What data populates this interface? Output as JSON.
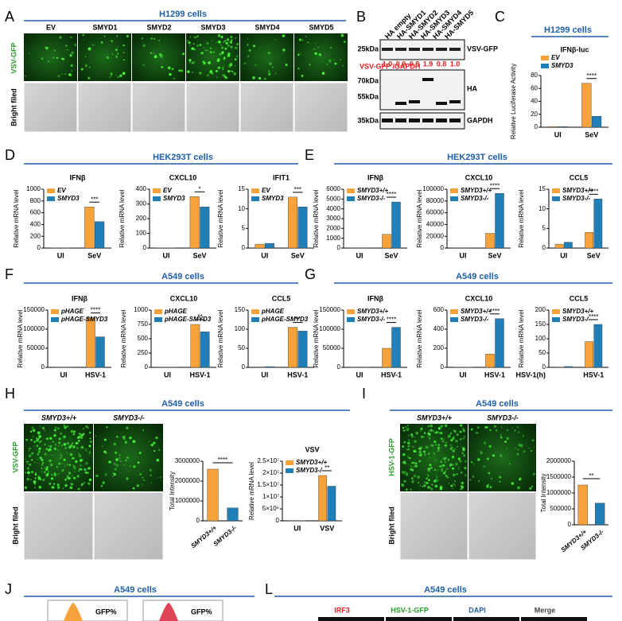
{
  "panels": [
    {
      "letter": "A",
      "header": "H1299 cells"
    },
    {
      "letter": "B"
    },
    {
      "letter": "C",
      "header": "H1299 cells"
    },
    {
      "letter": "D",
      "header": "HEK293T cells"
    },
    {
      "letter": "E",
      "header": "HEK293T cells"
    },
    {
      "letter": "F",
      "header": "A549 cells"
    },
    {
      "letter": "G",
      "header": "A549 cells"
    },
    {
      "letter": "H",
      "header": "A549 cells"
    },
    {
      "letter": "I",
      "header": "A549 cells"
    },
    {
      "letter": "J",
      "header": "A549 cells"
    },
    {
      "letter": "L",
      "header": "A549 cells"
    }
  ],
  "panel_a": {
    "columns": [
      "EV",
      "SMYD1",
      "SMYD2",
      "SMYD3",
      "SMYD4",
      "SMYD5"
    ],
    "rows": [
      "VSV-GFP",
      "Bright filed"
    ]
  },
  "panel_b": {
    "lanes": [
      "HA empty",
      "HA-SMYD1",
      "HA-SMYD2",
      "HA-SMYD3",
      "HA-SMYD4",
      "HA-SMYD5"
    ],
    "markers": [
      "25kDa",
      "70kDa",
      "55kDa",
      "35kDa"
    ],
    "bands": [
      "VSV-GFP",
      "HA",
      "GAPDH"
    ],
    "ratio_label": "VSV-GFP /GAPDH",
    "ratios": [
      "1.0",
      "0.9",
      "0.8",
      "1.9",
      "0.8",
      "1.0"
    ]
  },
  "panel_h": {
    "columns": [
      "SMYD3+/+",
      "SMYD3-/-"
    ],
    "rows": [
      "VSV-GFP",
      "Bright filed"
    ]
  },
  "panel_i": {
    "columns": [
      "SMYD3+/+",
      "SMYD3-/-"
    ],
    "rows": [
      "HSV-1-GFP",
      "Bright filed"
    ]
  },
  "panel_j": {
    "labels": [
      "GFP%",
      "GFP%"
    ]
  },
  "panel_l": {
    "columns": [
      "IRF3",
      "HSV-1-GFP",
      "DAPI",
      "Merge"
    ]
  },
  "chart_data": [
    {
      "type": "bar",
      "title": "IFNβ-luc",
      "ylabel": "Relative Luciferase Activity",
      "categories": [
        "UI",
        "SeV"
      ],
      "series": [
        {
          "name": "EV",
          "color": "#f5a23a",
          "values": [
            1,
            68
          ]
        },
        {
          "name": "SMYD3",
          "color": "#1f7fb6",
          "values": [
            1,
            17
          ]
        }
      ],
      "ylim": [
        0,
        80
      ],
      "yticks": [
        0,
        20,
        40,
        60,
        80
      ],
      "annotation": "****"
    },
    {
      "type": "bar",
      "title": "IFNβ",
      "ylabel": "Relative mRNA level",
      "categories": [
        "UI",
        "SeV"
      ],
      "series": [
        {
          "name": "EV",
          "color": "#f5a23a",
          "values": [
            1,
            700
          ]
        },
        {
          "name": "SMYD3",
          "color": "#1f7fb6",
          "values": [
            1,
            450
          ]
        }
      ],
      "ylim": [
        0,
        1000
      ],
      "yticks": [
        0,
        200,
        400,
        600,
        800,
        1000
      ],
      "annotation": "***"
    },
    {
      "type": "bar",
      "title": "CXCL10",
      "ylabel": "Relative mRNA level",
      "categories": [
        "UI",
        "SeV"
      ],
      "series": [
        {
          "name": "EV",
          "color": "#f5a23a",
          "values": [
            1,
            350
          ]
        },
        {
          "name": "SMYD3",
          "color": "#1f7fb6",
          "values": [
            1,
            280
          ]
        }
      ],
      "ylim": [
        0,
        400
      ],
      "yticks": [
        0,
        100,
        200,
        300,
        400
      ],
      "annotation": "*"
    },
    {
      "type": "bar",
      "title": "IFIT1",
      "ylabel": "Relative mRNA level",
      "categories": [
        "UI",
        "SeV"
      ],
      "series": [
        {
          "name": "EV",
          "color": "#f5a23a",
          "values": [
            1,
            13
          ]
        },
        {
          "name": "SMYD3",
          "color": "#1f7fb6",
          "values": [
            1.2,
            10.5
          ]
        }
      ],
      "ylim": [
        0,
        15
      ],
      "yticks": [
        0,
        5,
        10,
        15
      ],
      "annotation": "***"
    },
    {
      "type": "bar",
      "title": "IFNβ",
      "ylabel": "Relative mRNA level",
      "categories": [
        "UI",
        "SeV"
      ],
      "series": [
        {
          "name": "SMYD3+/+",
          "color": "#f5a23a",
          "values": [
            1,
            1400
          ]
        },
        {
          "name": "SMYD3-/-",
          "color": "#1f7fb6",
          "values": [
            1,
            4700
          ]
        }
      ],
      "ylim": [
        0,
        6000
      ],
      "yticks": [
        0,
        1000,
        2000,
        3000,
        4000,
        5000,
        6000
      ],
      "annotation": "****"
    },
    {
      "type": "bar",
      "title": "CXCL10",
      "ylabel": "Relative mRNA level",
      "categories": [
        "UI",
        "SeV"
      ],
      "series": [
        {
          "name": "SMYD3+/+",
          "color": "#f5a23a",
          "values": [
            1,
            25000
          ]
        },
        {
          "name": "SMYD3-/-",
          "color": "#1f7fb6",
          "values": [
            1,
            93000
          ]
        }
      ],
      "ylim": [
        0,
        100000
      ],
      "yticks": [
        0,
        20000,
        40000,
        60000,
        80000,
        100000
      ],
      "annotation": "****"
    },
    {
      "type": "bar",
      "title": "CCL5",
      "ylabel": "Relative mRNA level",
      "categories": [
        "UI",
        "SeV"
      ],
      "series": [
        {
          "name": "SMYD3+/+",
          "color": "#f5a23a",
          "values": [
            1,
            4
          ]
        },
        {
          "name": "SMYD3-/-",
          "color": "#1f7fb6",
          "values": [
            1.5,
            12.5
          ]
        }
      ],
      "ylim": [
        0,
        15
      ],
      "yticks": [
        0,
        5,
        10,
        15
      ],
      "annotation": "****"
    },
    {
      "type": "bar",
      "title": "IFNβ",
      "ylabel": "Relative mRNA level",
      "categories": [
        "UI",
        "HSV-1"
      ],
      "series": [
        {
          "name": "pHAGE",
          "color": "#f5a23a",
          "values": [
            1,
            130000
          ]
        },
        {
          "name": "pHAGE-SMYD3",
          "color": "#1f7fb6",
          "values": [
            1,
            80000
          ]
        }
      ],
      "ylim": [
        0,
        150000
      ],
      "yticks": [
        0,
        50000,
        100000,
        150000
      ],
      "annotation": "****"
    },
    {
      "type": "bar",
      "title": "CXCL10",
      "ylabel": "Relative mRNA level",
      "categories": [
        "UI",
        "HSV-1"
      ],
      "series": [
        {
          "name": "pHAGE",
          "color": "#f5a23a",
          "values": [
            1,
            750
          ]
        },
        {
          "name": "pHAGE-SMYD3",
          "color": "#1f7fb6",
          "values": [
            1,
            620
          ]
        }
      ],
      "ylim": [
        0,
        1000
      ],
      "yticks": [
        0,
        250,
        500,
        750,
        1000
      ],
      "annotation": "**"
    },
    {
      "type": "bar",
      "title": "CCL5",
      "ylabel": "Relative mRNA level",
      "categories": [
        "UI",
        "HSV-1"
      ],
      "series": [
        {
          "name": "pHAGE",
          "color": "#f5a23a",
          "values": [
            1,
            105
          ]
        },
        {
          "name": "pHAGE-SMYD3",
          "color": "#1f7fb6",
          "values": [
            2,
            95
          ]
        }
      ],
      "ylim": [
        0,
        150
      ],
      "yticks": [
        0,
        50,
        100,
        150
      ],
      "annotation": "**"
    },
    {
      "type": "bar",
      "title": "IFNβ",
      "ylabel": "Relative mRNA level",
      "categories": [
        "UI",
        "HSV-1"
      ],
      "series": [
        {
          "name": "SMYD3+/+",
          "color": "#f5a23a",
          "values": [
            1,
            50000
          ]
        },
        {
          "name": "SMYD3-/-",
          "color": "#1f7fb6",
          "values": [
            1,
            105000
          ]
        }
      ],
      "ylim": [
        0,
        150000
      ],
      "yticks": [
        0,
        50000,
        100000,
        150000
      ],
      "annotation": "****"
    },
    {
      "type": "bar",
      "title": "CXCL10",
      "ylabel": "Relative mRNA level",
      "categories": [
        "UI",
        "HSV-1"
      ],
      "series": [
        {
          "name": "SMYD3+/+",
          "color": "#f5a23a",
          "values": [
            1,
            140
          ]
        },
        {
          "name": "SMYD3-/-",
          "color": "#1f7fb6",
          "values": [
            2,
            510
          ]
        }
      ],
      "ylim": [
        0,
        600
      ],
      "yticks": [
        0,
        200,
        400,
        600
      ],
      "annotation": "****"
    },
    {
      "type": "bar",
      "title": "CCL5",
      "ylabel": "Relative mRNA level",
      "xlabel": "HSV-1(h)",
      "categories": [
        null,
        "HSV-1"
      ],
      "series": [
        {
          "name": "SMYD3+/+",
          "color": "#f5a23a",
          "values": [
            1,
            90
          ]
        },
        {
          "name": "SMYD3-/-",
          "color": "#1f7fb6",
          "values": [
            3,
            150
          ]
        }
      ],
      "ylim": [
        0,
        200
      ],
      "yticks": [
        0,
        50,
        100,
        150,
        200
      ],
      "annotation": "****"
    },
    {
      "type": "column",
      "ylabel": "Total Intensity",
      "categories": [
        "SMYD3+/+",
        "SMYD3-/-"
      ],
      "values": [
        2600000,
        650000
      ],
      "colors": [
        "#f5a23a",
        "#1f7fb6"
      ],
      "ylim": [
        0,
        3000000
      ],
      "yticks": [
        0,
        1000000,
        2000000,
        3000000
      ],
      "annotation": "****"
    },
    {
      "type": "bar",
      "title": "VSV",
      "ylabel": "Relative mRNA level",
      "categories": [
        "UI",
        "VSV"
      ],
      "series": [
        {
          "name": "SMYD3+/+",
          "color": "#f5a23a",
          "values": [
            1,
            19000000
          ]
        },
        {
          "name": "SMYD3-/-",
          "color": "#1f7fb6",
          "values": [
            1,
            14500000
          ]
        }
      ],
      "ylim": [
        0,
        25000000
      ],
      "yticks": [
        0,
        {
          "value": 5000000,
          "label": "5×10⁶"
        },
        {
          "value": 10000000,
          "label": "1×10⁷"
        },
        {
          "value": 15000000,
          "label": "1.5×10⁷"
        },
        {
          "value": 20000000,
          "label": "2×10⁷"
        },
        {
          "value": 25000000,
          "label": "2.5×10⁷"
        }
      ],
      "annotation": "**"
    },
    {
      "type": "column",
      "ylabel": "Total Intensity",
      "categories": [
        "SMYD3+/+",
        "SMYD3-/-"
      ],
      "values": [
        1250000,
        680000
      ],
      "colors": [
        "#f5a23a",
        "#1f7fb6"
      ],
      "ylim": [
        0,
        2000000
      ],
      "yticks": [
        0,
        500000,
        1000000,
        1500000,
        2000000
      ],
      "annotation": "**"
    }
  ]
}
